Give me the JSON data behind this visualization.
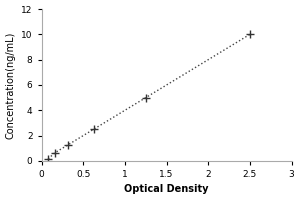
{
  "x_data": [
    0.078,
    0.156,
    0.312,
    0.625,
    1.25,
    2.5
  ],
  "y_data": [
    0.156,
    0.625,
    1.25,
    2.5,
    5.0,
    10.0
  ],
  "xlabel": "Optical Density",
  "ylabel": "Concentration(ng/mL)",
  "xlim": [
    0,
    3
  ],
  "ylim": [
    0,
    12
  ],
  "xticks": [
    0,
    0.5,
    1,
    1.5,
    2,
    2.5,
    3
  ],
  "yticks": [
    0,
    2,
    4,
    6,
    8,
    10,
    12
  ],
  "line_color": "#444444",
  "marker_color": "#333333",
  "marker_style": "+",
  "background_color": "#ffffff",
  "label_fontsize": 7,
  "tick_fontsize": 6.5,
  "marker_size": 40,
  "linewidth": 1.0
}
